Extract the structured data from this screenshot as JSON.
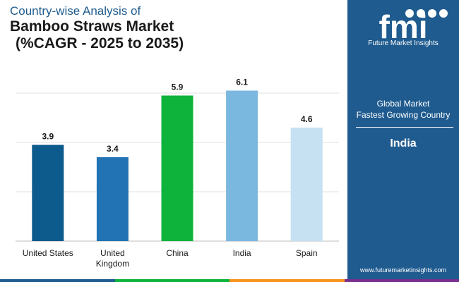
{
  "title": {
    "line1": "Country-wise Analysis of",
    "line2": "Bamboo Straws Market",
    "line3": "(%CAGR - 2025 to 2035)"
  },
  "chart_data": {
    "type": "bar",
    "categories": [
      "United States",
      "United Kingdom",
      "China",
      "India",
      "Spain"
    ],
    "category_lines": [
      [
        "United States"
      ],
      [
        "United",
        "Kingdom"
      ],
      [
        "China"
      ],
      [
        "India"
      ],
      [
        "Spain"
      ]
    ],
    "values": [
      3.9,
      3.4,
      5.9,
      6.1,
      4.6
    ],
    "data_labels": [
      "3.9",
      "3.4",
      "5.9",
      "6.1",
      "4.6"
    ],
    "bar_colors": [
      "#0d5a8c",
      "#2173b3",
      "#0db33b",
      "#7ab8e0",
      "#c6e1f2"
    ],
    "ylim": [
      0,
      7
    ],
    "grid": true,
    "title": "Country-wise Analysis of Bamboo Straws Market (%CAGR - 2025 to 2035)",
    "xlabel": "",
    "ylabel": ""
  },
  "panel": {
    "brand_letters": "fmi",
    "brand_name": "Future Market Insights",
    "label1": "Global Market",
    "label2": "Fastest Growing Country",
    "country": "India",
    "url": "www.futuremarketinsights.com"
  },
  "colors": {
    "panel_bg": "#1f5b8f",
    "bottom_bar": [
      "#1f5b8f",
      "#0db33b",
      "#f7941d",
      "#7a2e8e"
    ]
  }
}
